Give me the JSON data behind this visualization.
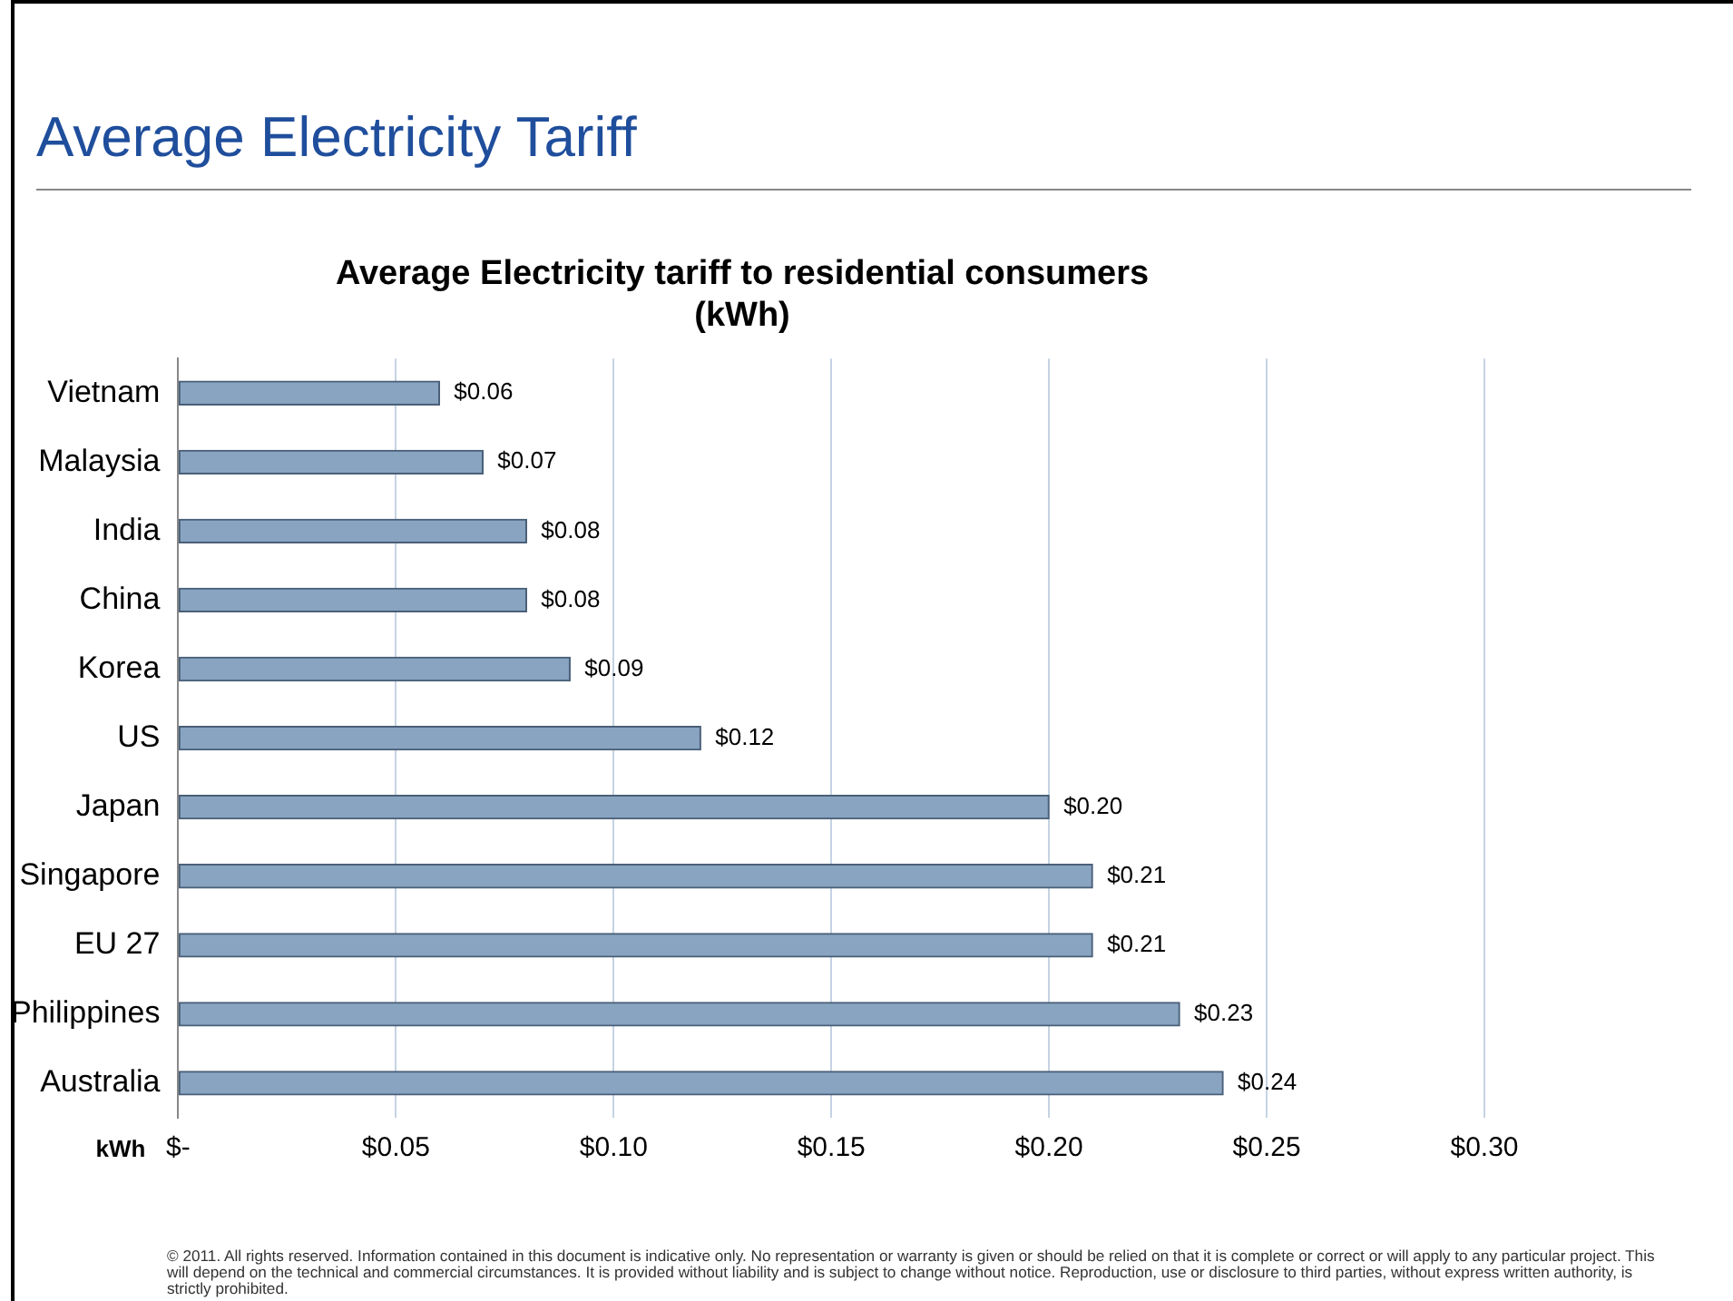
{
  "chart_data": {
    "type": "bar",
    "orientation": "horizontal",
    "title": "Average Electricity Tariff",
    "subtitle": "Average Electricity tariff to residential consumers (kWh)",
    "xlabel": "kWh",
    "categories": [
      "Vietnam",
      "Malaysia",
      "India",
      "China",
      "Korea",
      "US",
      "Japan",
      "Singapore",
      "EU 27",
      "Philippines",
      "Australia"
    ],
    "values": [
      0.06,
      0.07,
      0.08,
      0.08,
      0.09,
      0.12,
      0.2,
      0.21,
      0.21,
      0.23,
      0.24
    ],
    "value_labels": [
      "$0.06",
      "$0.07",
      "$0.08",
      "$0.08",
      "$0.09",
      "$0.12",
      "$0.20",
      "$0.21",
      "$0.21",
      "$0.23",
      "$0.24"
    ],
    "color": "#88a4c0",
    "xlim": [
      0,
      0.3
    ],
    "xticks": [
      {
        "value": 0,
        "label": "$-"
      },
      {
        "value": 0.05,
        "label": "$0.05"
      },
      {
        "value": 0.1,
        "label": "$0.10"
      },
      {
        "value": 0.15,
        "label": "$0.15"
      },
      {
        "value": 0.2,
        "label": "$0.20"
      },
      {
        "value": 0.25,
        "label": "$0.25"
      },
      {
        "value": 0.3,
        "label": "$0.30"
      }
    ],
    "grid": "x",
    "legend": false,
    "annotations": [
      "© 2011. All rights reserved. Information contained in this document is indicative only. No representation or warranty is given or should be relied on that it is complete or correct or will apply to any particular project. This will depend on the technical and commercial circumstances. It is provided without liability and is subject to change without notice. Reproduction, use or disclosure to third parties, without express written authority, is strictly prohibited."
    ]
  }
}
